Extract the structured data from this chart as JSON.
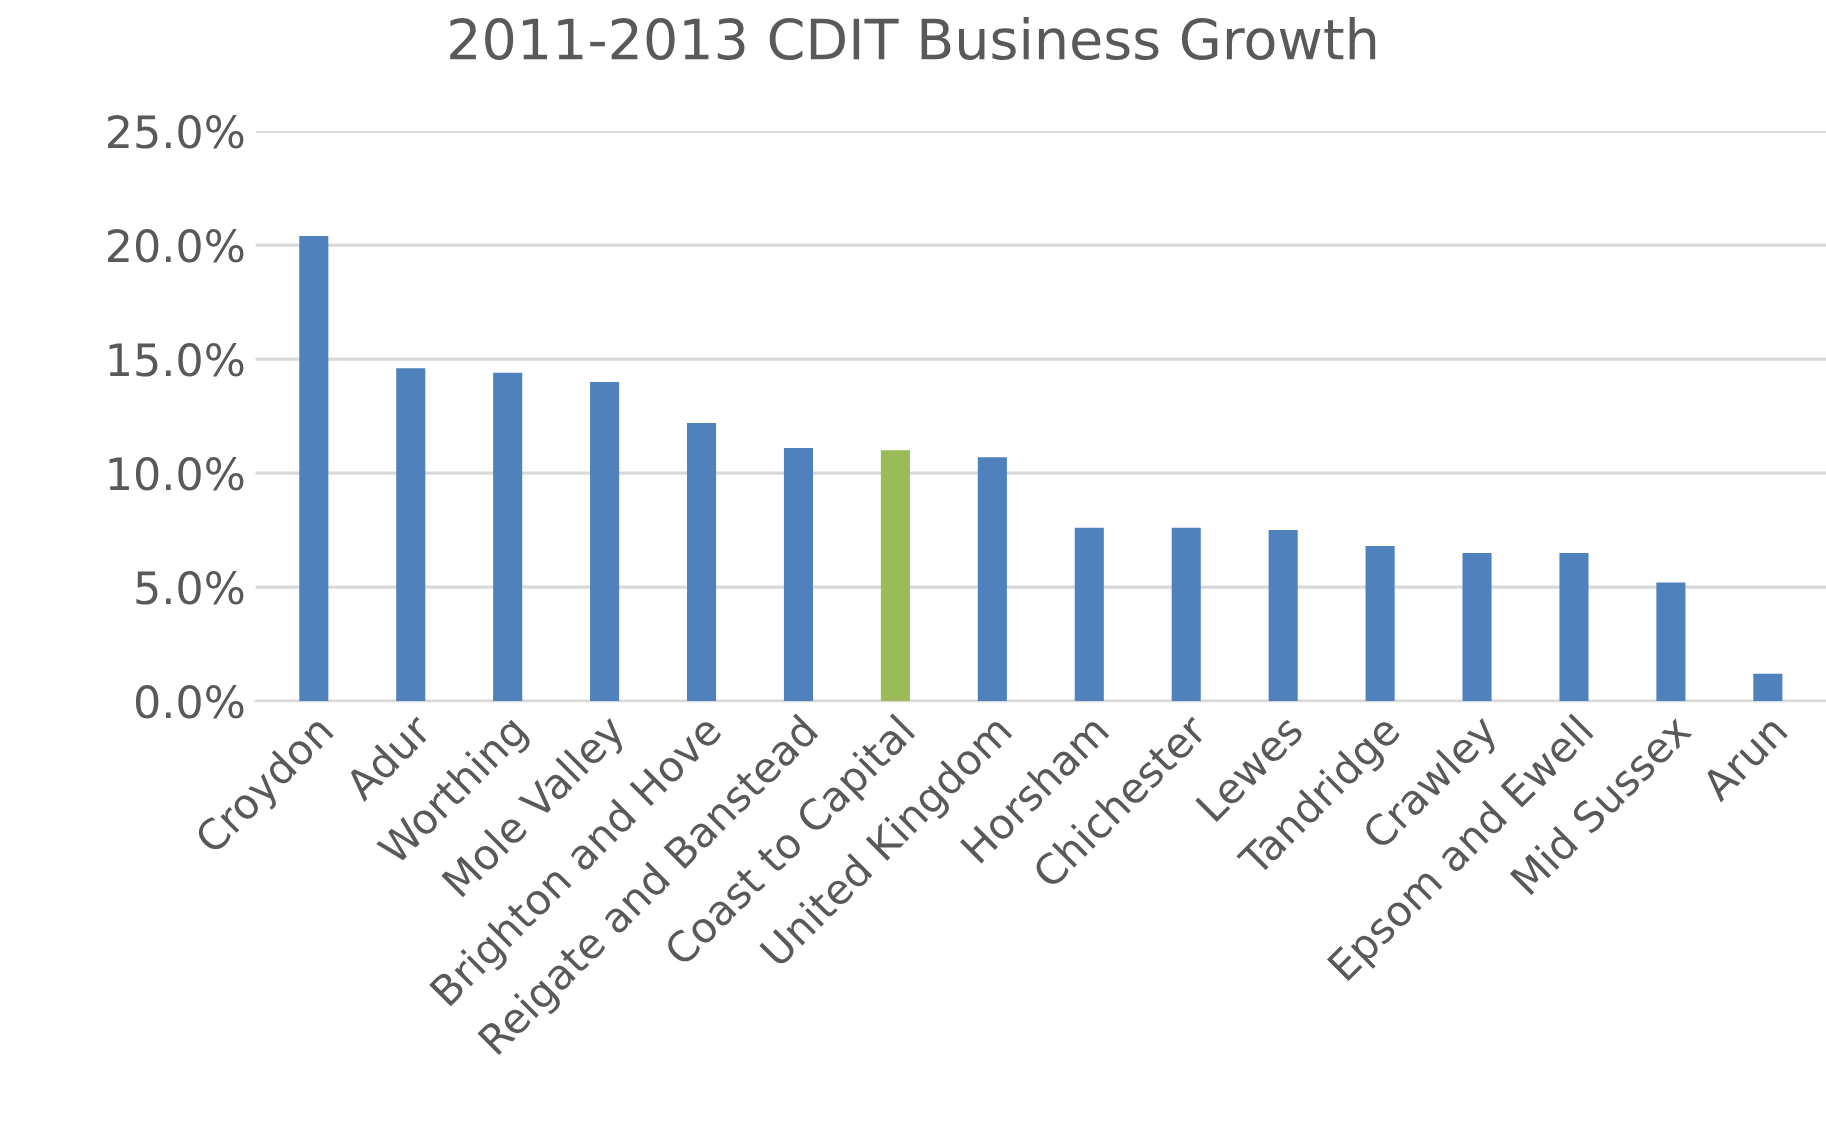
{
  "chart_data": {
    "type": "bar",
    "title": "2011-2013 CDIT Business Growth",
    "categories": [
      "Croydon",
      "Adur",
      "Worthing",
      "Mole Valley",
      "Brighton and Hove",
      "Reigate and Banstead",
      "Coast to Capital",
      "United Kingdom",
      "Horsham",
      "Chichester",
      "Lewes",
      "Tandridge",
      "Crawley",
      "Epsom and Ewell",
      "Mid Sussex",
      "Arun"
    ],
    "values": [
      20.4,
      14.6,
      14.4,
      14.0,
      12.2,
      11.1,
      11.0,
      10.7,
      7.6,
      7.6,
      7.5,
      6.8,
      6.5,
      6.5,
      5.2,
      1.2
    ],
    "colors": [
      "#4f81bd",
      "#4f81bd",
      "#4f81bd",
      "#4f81bd",
      "#4f81bd",
      "#4f81bd",
      "#9bbb59",
      "#4f81bd",
      "#4f81bd",
      "#4f81bd",
      "#4f81bd",
      "#4f81bd",
      "#4f81bd",
      "#4f81bd",
      "#4f81bd",
      "#4f81bd"
    ],
    "ylim": [
      0,
      25
    ],
    "yticks": [
      {
        "value": 0,
        "label": "0.0%"
      },
      {
        "value": 5,
        "label": "5.0%"
      },
      {
        "value": 10,
        "label": "10.0%"
      },
      {
        "value": 15,
        "label": "15.0%"
      },
      {
        "value": 20,
        "label": "20.0%"
      },
      {
        "value": 25,
        "label": "25.0%"
      }
    ],
    "grid": "y",
    "legend": false
  }
}
